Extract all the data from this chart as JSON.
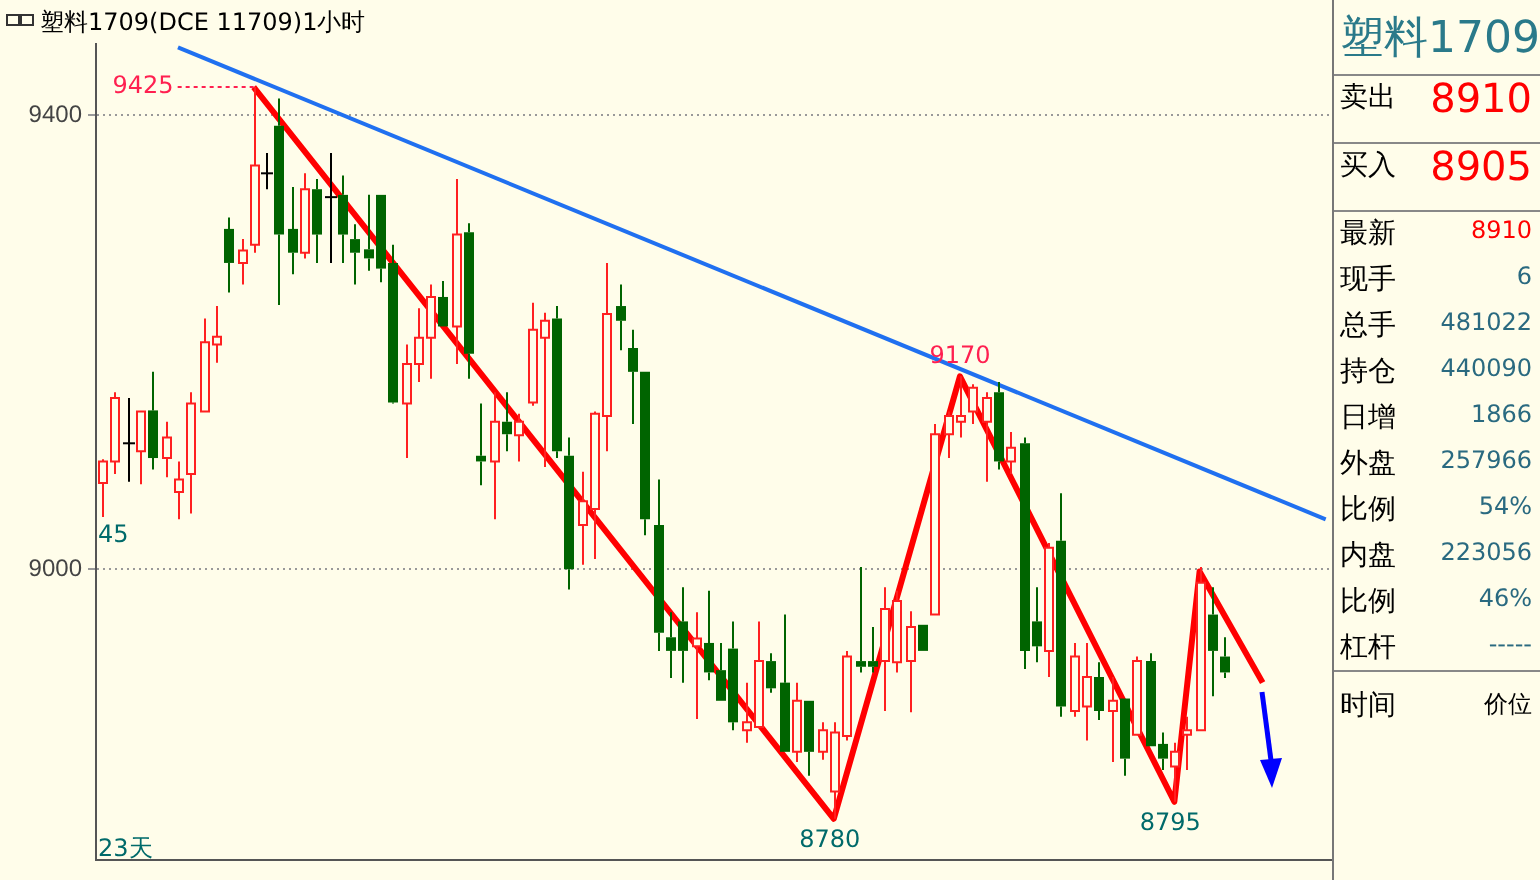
{
  "chart_data": [
    {
      "type": "candlestick",
      "title": "塑料1709(DCE 11709)1小时",
      "categories": [
        null,
        null,
        null,
        null,
        null,
        null,
        null,
        null,
        null,
        null,
        null,
        null,
        null,
        null,
        null,
        null,
        null,
        null,
        null,
        null,
        null,
        null,
        null,
        null,
        null,
        null,
        null,
        null,
        null,
        null,
        null,
        null,
        null,
        null,
        null,
        null,
        null,
        null,
        null,
        null,
        null,
        null,
        null,
        null,
        null,
        null,
        null,
        null,
        null,
        null,
        null,
        null,
        null,
        null,
        null,
        null,
        null,
        null,
        null,
        null,
        null,
        null,
        null,
        null,
        null,
        null,
        null,
        null,
        null,
        null,
        null,
        null,
        null,
        null,
        null,
        null,
        null,
        null,
        null,
        null,
        null,
        null,
        null,
        null,
        null,
        null,
        null,
        null,
        null,
        null,
        null,
        null,
        null,
        null,
        null,
        null,
        null,
        null
      ],
      "ohlc": [
        [
          9076,
          9097,
          9046,
          9095
        ],
        [
          9095,
          9156,
          9084,
          9151
        ],
        [
          9111,
          9151,
          9077,
          9111
        ],
        [
          9104,
          9139,
          9075,
          9139
        ],
        [
          9140,
          9174,
          9088,
          9098
        ],
        [
          9098,
          9130,
          9081,
          9116
        ],
        [
          9068,
          9095,
          9044,
          9079
        ],
        [
          9084,
          9156,
          9049,
          9146
        ],
        [
          9139,
          9221,
          9139,
          9200
        ],
        [
          9198,
          9232,
          9182,
          9205
        ],
        [
          9300,
          9310,
          9244,
          9270
        ],
        [
          9270,
          9291,
          9251,
          9281
        ],
        [
          9286,
          9425,
          9279,
          9356
        ],
        [
          9349,
          9367,
          9335,
          9349
        ],
        [
          9391,
          9415,
          9233,
          9295
        ],
        [
          9300,
          9337,
          9260,
          9279
        ],
        [
          9279,
          9349,
          9274,
          9335
        ],
        [
          9335,
          9344,
          9270,
          9295
        ],
        [
          9328,
          9367,
          9270,
          9328
        ],
        [
          9330,
          9347,
          9270,
          9295
        ],
        [
          9291,
          9304,
          9251,
          9279
        ],
        [
          9282,
          9330,
          9263,
          9274
        ],
        [
          9330,
          9330,
          9253,
          9265
        ],
        [
          9270,
          9286,
          9146,
          9147
        ],
        [
          9146,
          9198,
          9098,
          9181
        ],
        [
          9181,
          9230,
          9165,
          9204
        ],
        [
          9204,
          9251,
          9168,
          9240
        ],
        [
          9240,
          9254,
          9214,
          9214
        ],
        [
          9214,
          9344,
          9181,
          9295
        ],
        [
          9297,
          9305,
          9168,
          9190
        ],
        [
          9100,
          9146,
          9074,
          9095
        ],
        [
          9095,
          9156,
          9044,
          9130
        ],
        [
          9130,
          9156,
          9104,
          9119
        ],
        [
          9118,
          9137,
          9095,
          9130
        ],
        [
          9147,
          9235,
          9144,
          9211
        ],
        [
          9204,
          9226,
          9090,
          9219
        ],
        [
          9221,
          9232,
          9098,
          9104
        ],
        [
          9100,
          9116,
          8982,
          9000
        ],
        [
          9039,
          9086,
          9004,
          9060
        ],
        [
          9053,
          9139,
          9009,
          9137
        ],
        [
          9135,
          9270,
          9104,
          9225
        ],
        [
          9232,
          9251,
          9193,
          9219
        ],
        [
          9195,
          9211,
          9128,
          9174
        ],
        [
          9174,
          9174,
          9030,
          9044
        ],
        [
          9039,
          9079,
          8928,
          8944
        ],
        [
          8940,
          8962,
          8904,
          8928
        ],
        [
          8954,
          8984,
          8900,
          8928
        ],
        [
          8932,
          8962,
          8868,
          8939
        ],
        [
          8935,
          8981,
          8902,
          8909
        ],
        [
          8911,
          8935,
          8884,
          8884
        ],
        [
          8930,
          8954,
          8858,
          8865
        ],
        [
          8858,
          8900,
          8847,
          8865
        ],
        [
          8861,
          8954,
          8861,
          8919
        ],
        [
          8919,
          8926,
          8891,
          8895
        ],
        [
          8900,
          8960,
          8839,
          8839
        ],
        [
          8839,
          8900,
          8830,
          8884
        ],
        [
          8884,
          8884,
          8818,
          8839
        ],
        [
          8839,
          8865,
          8832,
          8858
        ],
        [
          8804,
          8865,
          8780,
          8856
        ],
        [
          8853,
          8928,
          8849,
          8923
        ],
        [
          8919,
          9002,
          8909,
          8914
        ],
        [
          8919,
          8949,
          8909,
          8914
        ],
        [
          8919,
          8984,
          8875,
          8965
        ],
        [
          8918,
          8981,
          8909,
          8972
        ],
        [
          8919,
          8963,
          8874,
          8949
        ],
        [
          8951,
          8951,
          8928,
          8928
        ],
        [
          8960,
          9128,
          8960,
          9119
        ],
        [
          9119,
          9139,
          9098,
          9135
        ],
        [
          9130,
          9170,
          9116,
          9135
        ],
        [
          9139,
          9163,
          9128,
          9160
        ],
        [
          9130,
          9156,
          9077,
          9151
        ],
        [
          9156,
          9165,
          9088,
          9095
        ],
        [
          9095,
          9121,
          9084,
          9107
        ],
        [
          9111,
          9116,
          8912,
          8928
        ],
        [
          8954,
          8984,
          8918,
          8932
        ],
        [
          8928,
          9023,
          8905,
          9019
        ],
        [
          9025,
          9067,
          8870,
          8879
        ],
        [
          8875,
          8935,
          8870,
          8923
        ],
        [
          8879,
          8935,
          8849,
          8905
        ],
        [
          8905,
          8918,
          8867,
          8875
        ],
        [
          8875,
          8905,
          8830,
          8884
        ],
        [
          8886,
          8886,
          8818,
          8833
        ],
        [
          8854,
          8923,
          8854,
          8919
        ],
        [
          8919,
          8926,
          8844,
          8844
        ],
        [
          8846,
          8856,
          8823,
          8833
        ],
        [
          8826,
          8847,
          8795,
          8839
        ],
        [
          8854,
          8870,
          8823,
          8858
        ],
        [
          8858,
          9002,
          8858,
          8988
        ],
        [
          8960,
          8984,
          8888,
          8928
        ],
        [
          8923,
          8940,
          8904,
          8909
        ],
        null,
        null,
        null,
        null,
        null,
        null,
        null,
        null
      ],
      "series": [
        {
          "type": "line",
          "color": "#2070f0",
          "values": [
            null,
            null,
            null,
            null,
            null,
            null,
            9460,
            null,
            null,
            null,
            null,
            null,
            null,
            null,
            null,
            null,
            null,
            null,
            null,
            null,
            null,
            null,
            null,
            null,
            null,
            null,
            null,
            null,
            null,
            null,
            null,
            null,
            null,
            null,
            null,
            null,
            null,
            null,
            null,
            null,
            null,
            null,
            null,
            null,
            null,
            null,
            null,
            null,
            null,
            null,
            null,
            null,
            null,
            null,
            null,
            null,
            null,
            null,
            null,
            null,
            null,
            null,
            null,
            null,
            null,
            null,
            null,
            null,
            null,
            null,
            null,
            null,
            null,
            null,
            null,
            null,
            null,
            null,
            null,
            null,
            null,
            null,
            null,
            null,
            null,
            null,
            null,
            null,
            null,
            null,
            null,
            null,
            null,
            null,
            null,
            null,
            null,
            9044
          ]
        },
        {
          "type": "line",
          "color": "#ff0000",
          "values": [
            null,
            null,
            null,
            null,
            null,
            null,
            null,
            null,
            null,
            null,
            null,
            null,
            9425,
            null,
            null,
            null,
            null,
            null,
            null,
            null,
            null,
            null,
            null,
            null,
            null,
            null,
            null,
            null,
            null,
            null,
            null,
            null,
            null,
            null,
            null,
            null,
            null,
            null,
            null,
            null,
            null,
            null,
            null,
            null,
            null,
            null,
            null,
            null,
            null,
            null,
            null,
            null,
            null,
            null,
            null,
            null,
            null,
            null,
            8780,
            null,
            null,
            null,
            null,
            null,
            null,
            null,
            null,
            null,
            9170,
            null,
            null,
            null,
            null,
            null,
            null,
            null,
            null,
            null,
            null,
            null,
            null,
            null,
            null,
            null,
            null,
            8795,
            null,
            8998,
            null,
            null,
            null,
            null,
            8900,
            null,
            null,
            null,
            null,
            null
          ]
        }
      ],
      "ylim": [
        8744,
        9463
      ],
      "yticks": [
        9400,
        9000
      ],
      "grid": "y",
      "tick_labels": "y",
      "annotations": [
        "9425",
        {
          "text": "8780",
          "y": 8780
        },
        {
          "text": "9170",
          "y": 9170
        },
        {
          "text": "8795",
          "y": 8795
        },
        "45",
        "23天"
      ]
    },
    {
      "type": "other",
      "title": "塑料1709",
      "annotations": [
        "卖出",
        "8910",
        "买入",
        "8905",
        "最新",
        "8910",
        "现手",
        "6",
        "总手",
        "481022",
        "持仓",
        "440090",
        "日增",
        "1866",
        "外盘",
        "257966",
        "比例",
        "54%",
        "内盘",
        "223056",
        "比例",
        "46%",
        "杠杆",
        "-----",
        "时间",
        "价位"
      ]
    }
  ]
}
